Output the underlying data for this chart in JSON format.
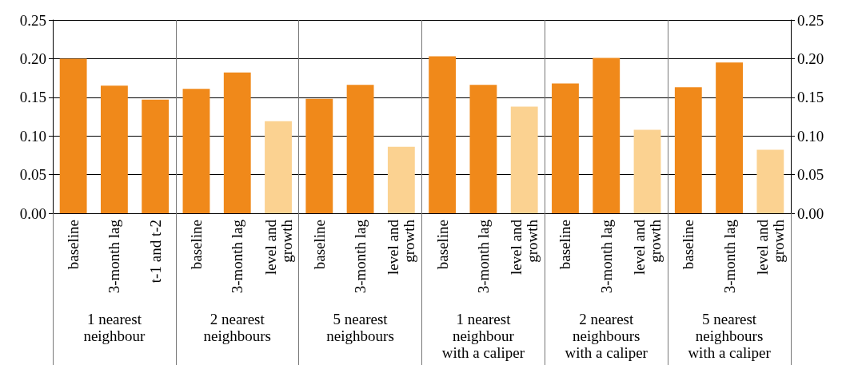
{
  "chart_data": {
    "type": "bar",
    "categories": [
      "baseline",
      "3-month lag",
      "t-1 and t-2",
      "baseline",
      "3-month lag",
      "level and\ngrowth",
      "baseline",
      "3-month lag",
      "level and\ngrowth",
      "baseline",
      "3-month lag",
      "level and\ngrowth",
      "baseline",
      "3-month lag",
      "level and\ngrowth",
      "baseline",
      "3-month lag",
      "level and\ngrowth"
    ],
    "values": [
      0.2,
      0.165,
      0.147,
      0.161,
      0.182,
      0.119,
      0.148,
      0.166,
      0.086,
      0.203,
      0.166,
      0.138,
      0.168,
      0.201,
      0.108,
      0.163,
      0.195,
      0.082
    ],
    "colors": [
      "#f0891a",
      "#f0891a",
      "#f0891a",
      "#f0891a",
      "#f0891a",
      "#fbd291",
      "#f0891a",
      "#f0891a",
      "#fbd291",
      "#f0891a",
      "#f0891a",
      "#fbd291",
      "#f0891a",
      "#f0891a",
      "#fbd291",
      "#f0891a",
      "#f0891a",
      "#fbd291"
    ],
    "annotations": [
      "1 nearest\nneighbour",
      "2 nearest\nneighbours",
      "5 nearest\nneighbours",
      "1 nearest\nneighbour\nwith a caliper",
      "2 nearest\nneighbours\nwith a caliper",
      "5 nearest\nneighbours\nwith a caliper"
    ],
    "ylim": [
      0,
      0.25
    ],
    "yticks": [
      {
        "value": 0,
        "label": "0.00"
      },
      {
        "value": 0.05,
        "label": "0.05"
      },
      {
        "value": 0.1,
        "label": "0.10"
      },
      {
        "value": 0.15,
        "label": "0.15"
      },
      {
        "value": 0.2,
        "label": "0.20"
      },
      {
        "value": 0.25,
        "label": "0.25"
      }
    ],
    "y2lim": [
      0,
      0.25
    ],
    "y2ticks": [
      {
        "value": 0,
        "label": "0.00"
      },
      {
        "value": 0.05,
        "label": "0.05"
      },
      {
        "value": 0.1,
        "label": "0.10"
      },
      {
        "value": 0.15,
        "label": "0.15"
      },
      {
        "value": 0.2,
        "label": "0.20"
      },
      {
        "value": 0.25,
        "label": "0.25"
      }
    ],
    "grid": "y"
  }
}
